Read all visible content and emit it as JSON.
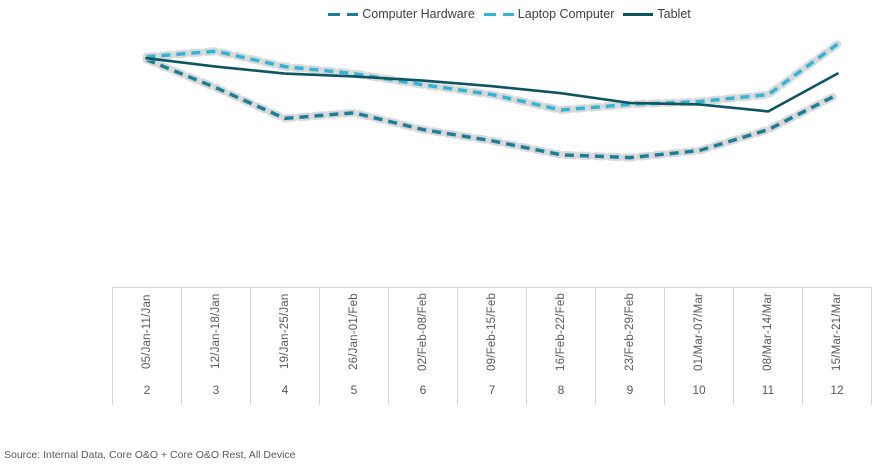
{
  "source_note": "Source: Internal Data, Core O&O + Core O&O Rest, All Device",
  "colors": {
    "computer_hardware": "#1b7f99",
    "laptop_computer": "#30b6d4",
    "tablet": "#0d5560",
    "dash_halo": "#d9d9d9",
    "table_border": "#d6d6d6",
    "axis_text": "#595959",
    "legend_text": "#3f3f3f"
  },
  "chart_data": {
    "type": "line",
    "title": "",
    "xlabel": "",
    "ylabel": "",
    "y_axis_visible": false,
    "grid": false,
    "legend_position": "top-center",
    "ylim": [
      0,
      100
    ],
    "categories": [
      "05/Jan-11/Jan",
      "12/Jan-18/Jan",
      "19/Jan-25/Jan",
      "26/Jan-01/Feb",
      "02/Feb-08/Feb",
      "09/Feb-15/Feb",
      "16/Feb-22/Feb",
      "23/Feb-29/Feb",
      "01/Mar-07/Mar",
      "08/Mar-14/Mar",
      "15/Mar-21/Mar"
    ],
    "week_numbers": [
      "2",
      "3",
      "4",
      "5",
      "6",
      "7",
      "8",
      "9",
      "10",
      "11",
      "12"
    ],
    "series": [
      {
        "name": "Computer Hardware",
        "style": "dashed",
        "color": "#1b7f99",
        "halo": "#d9d9d9",
        "values": [
          86,
          66,
          44,
          48,
          36,
          28,
          18,
          16,
          21,
          36,
          61
        ]
      },
      {
        "name": "Laptop Computer",
        "style": "dashed",
        "color": "#30b6d4",
        "halo": "#d9d9d9",
        "values": [
          88,
          92,
          81,
          76,
          68,
          61,
          50,
          54,
          56,
          61,
          97
        ]
      },
      {
        "name": "Tablet",
        "style": "solid",
        "color": "#0d5560",
        "values": [
          87,
          81,
          76,
          74,
          71,
          67,
          62,
          55,
          54,
          49,
          76
        ]
      }
    ]
  }
}
